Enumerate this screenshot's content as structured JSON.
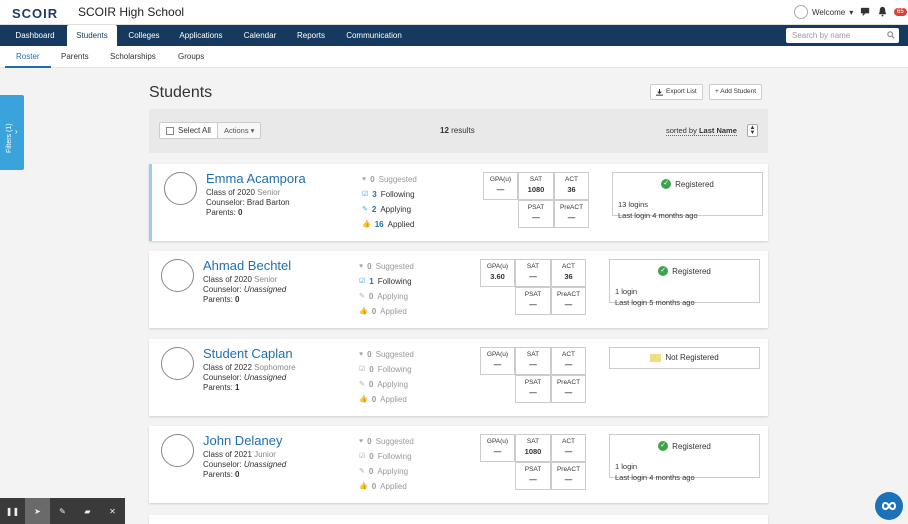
{
  "app": {
    "logo": "SCOIR",
    "school": "SCOIR High School",
    "welcome": "Welcome",
    "notification_count": "65"
  },
  "nav": {
    "tabs": [
      "Dashboard",
      "Students",
      "Colleges",
      "Applications",
      "Calendar",
      "Reports",
      "Communication"
    ],
    "active": "Students"
  },
  "search": {
    "placeholder": "Search by name"
  },
  "subnav": {
    "tabs": [
      "Roster",
      "Parents",
      "Scholarships",
      "Groups"
    ],
    "active": "Roster"
  },
  "filters": {
    "label": "Filters (1)"
  },
  "page": {
    "title": "Students",
    "export": "Export List",
    "add": "+ Add Student"
  },
  "toolbar": {
    "select_all": "Select All",
    "actions": "Actions ▾",
    "results_count": "12",
    "results_label": "results",
    "sorted_by": "sorted by",
    "sort_field": "Last Name"
  },
  "score_labels": {
    "gpa": "GPA(u)",
    "sat": "SAT",
    "act": "ACT",
    "psat": "PSAT",
    "preact": "PreACT"
  },
  "stat_labels": {
    "suggested": "Suggested",
    "following": "Following",
    "applying": "Applying",
    "applied": "Applied"
  },
  "students": [
    {
      "name": "Emma Acampora",
      "class": "Class of 2020",
      "year": "Senior",
      "counselor_label": "Counselor:",
      "counselor": "Brad Barton",
      "parents_label": "Parents:",
      "parents": "0",
      "suggested": "0",
      "following": "3",
      "applying": "2",
      "applied": "16",
      "gpa": "—",
      "sat": "1080",
      "act": "36",
      "psat": "—",
      "preact": "—",
      "status": "Registered",
      "logins": "13 logins",
      "last_login": "Last login 4 months ago"
    },
    {
      "name": "Ahmad Bechtel",
      "class": "Class of 2020",
      "year": "Senior",
      "counselor_label": "Counselor:",
      "counselor": "Unassigned",
      "parents_label": "Parents:",
      "parents": "0",
      "suggested": "0",
      "following": "1",
      "applying": "0",
      "applied": "0",
      "gpa": "3.60",
      "sat": "—",
      "act": "36",
      "psat": "—",
      "preact": "—",
      "status": "Registered",
      "logins": "1 login",
      "last_login": "Last login 5 months ago"
    },
    {
      "name": "Student Caplan",
      "class": "Class of 2022",
      "year": "Sophomore",
      "counselor_label": "Counselor:",
      "counselor": "Unassigned",
      "parents_label": "Parents:",
      "parents": "1",
      "suggested": "0",
      "following": "0",
      "applying": "0",
      "applied": "0",
      "gpa": "—",
      "sat": "—",
      "act": "—",
      "psat": "—",
      "preact": "—",
      "status": "Not Registered",
      "logins": "",
      "last_login": ""
    },
    {
      "name": "John Delaney",
      "class": "Class of 2021",
      "year": "Junior",
      "counselor_label": "Counselor:",
      "counselor": "Unassigned",
      "parents_label": "Parents:",
      "parents": "0",
      "suggested": "0",
      "following": "0",
      "applying": "0",
      "applied": "0",
      "gpa": "—",
      "sat": "1080",
      "act": "—",
      "psat": "—",
      "preact": "—",
      "status": "Registered",
      "logins": "1 login",
      "last_login": "Last login 4 months ago"
    }
  ],
  "colors": {
    "navy": "#15395f",
    "link": "#1f6fae",
    "filters": "#3aa3dc",
    "registered": "#3fa34d",
    "badge": "#d9423b"
  }
}
